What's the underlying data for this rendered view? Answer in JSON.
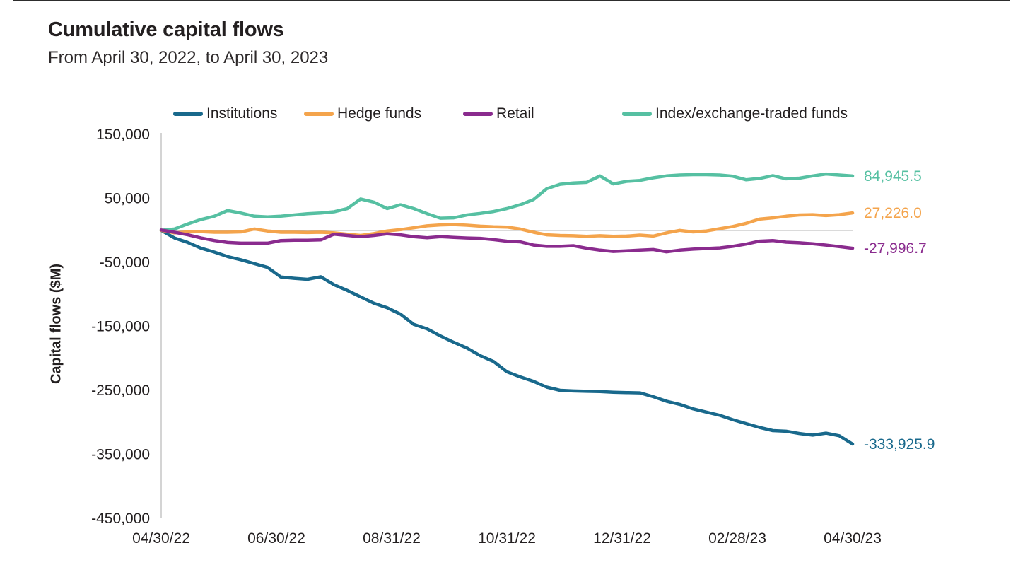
{
  "chart_data": {
    "type": "line",
    "title": "Cumulative capital flows",
    "subtitle": "From April 30, 2022, to April 30, 2023",
    "ylabel": "Capital flows ($M)",
    "xlabel": "",
    "ylim": [
      -450000,
      150000
    ],
    "grid": "zero-line-only",
    "legend_position": "top",
    "x_unit": "weekly points from 04/30/22 to 04/30/23",
    "y_ticks": [
      {
        "value": 150000,
        "label": "150,000"
      },
      {
        "value": 50000,
        "label": "50,000"
      },
      {
        "value": -50000,
        "label": "-50,000"
      },
      {
        "value": -150000,
        "label": "-150,000"
      },
      {
        "value": -250000,
        "label": "-250,000"
      },
      {
        "value": -350000,
        "label": "-350,000"
      },
      {
        "value": -450000,
        "label": "-450,000"
      }
    ],
    "x_tick_labels": [
      "04/30/22",
      "06/30/22",
      "08/31/22",
      "10/31/22",
      "12/31/22",
      "02/28/23",
      "04/30/23"
    ],
    "series": [
      {
        "name": "Institutions",
        "color": "#19698C",
        "end_label": "-333,925.9",
        "end_value": -333925.9,
        "values": [
          0,
          -12000,
          -19000,
          -28000,
          -34000,
          -41000,
          -46000,
          -52000,
          -58000,
          -73000,
          -75000,
          -76500,
          -72500,
          -85000,
          -94000,
          -104000,
          -114000,
          -121000,
          -131000,
          -147000,
          -154000,
          -165000,
          -175000,
          -184000,
          -196000,
          -205000,
          -221000,
          -229000,
          -236000,
          -245000,
          -250000,
          -251000,
          -251500,
          -252000,
          -253000,
          -253500,
          -254000,
          -260000,
          -267000,
          -272000,
          -279000,
          -284000,
          -289000,
          -296000,
          -302000,
          -308000,
          -313000,
          -314000,
          -317500,
          -320000,
          -317000,
          -321000,
          -333925.9
        ]
      },
      {
        "name": "Hedge funds",
        "color": "#F4A44C",
        "end_label": "27,226.0",
        "end_value": 27226.0,
        "values": [
          0,
          -4000,
          -2500,
          -2000,
          -3000,
          -3000,
          -2500,
          2000,
          -1000,
          -3000,
          -3000,
          -3500,
          -3000,
          -4000,
          -6000,
          -8000,
          -5000,
          -1000,
          1000,
          4000,
          7000,
          8500,
          9000,
          8000,
          6500,
          5500,
          5000,
          2000,
          -3000,
          -7000,
          -8000,
          -8500,
          -9500,
          -8500,
          -9500,
          -9000,
          -7500,
          -9000,
          -4000,
          0,
          -2500,
          -1000,
          2500,
          6000,
          11000,
          17500,
          19500,
          22000,
          24000,
          24500,
          23000,
          24500,
          27226.0
        ]
      },
      {
        "name": "Retail",
        "color": "#8A2B8E",
        "end_label": "-27,996.7",
        "end_value": -27996.7,
        "values": [
          500,
          -3000,
          -7000,
          -12000,
          -16000,
          -19000,
          -20000,
          -20000,
          -20000,
          -16000,
          -15500,
          -15500,
          -15000,
          -6000,
          -8000,
          -10000,
          -8000,
          -5500,
          -7000,
          -10000,
          -11500,
          -10000,
          -11000,
          -12000,
          -12500,
          -14500,
          -17000,
          -18000,
          -23000,
          -25000,
          -25000,
          -24000,
          -28000,
          -31000,
          -33000,
          -32000,
          -31000,
          -30000,
          -33500,
          -31000,
          -29500,
          -28500,
          -27500,
          -25000,
          -21500,
          -17000,
          -16000,
          -18500,
          -19500,
          -21000,
          -23000,
          -25500,
          -27996.7
        ]
      },
      {
        "name": "Index/exchange-traded funds",
        "color": "#56C0A2",
        "end_label": "84,945.5",
        "end_value": 84945.5,
        "values": [
          0,
          2000,
          10000,
          17000,
          22000,
          31000,
          27000,
          22000,
          21000,
          22000,
          24000,
          26000,
          27000,
          29000,
          34000,
          49000,
          44000,
          34000,
          40000,
          34000,
          26000,
          19000,
          19500,
          24000,
          26500,
          29500,
          34000,
          40000,
          48000,
          65000,
          72000,
          74000,
          75000,
          85000,
          72500,
          76500,
          78000,
          82000,
          85000,
          86500,
          87000,
          87000,
          86500,
          84500,
          79000,
          81000,
          85500,
          80500,
          81500,
          85000,
          88000,
          86500,
          84945.5
        ]
      }
    ],
    "colors": {
      "text": "#231f20",
      "axis_line": "#c6c6c6",
      "zero_line": "#b4b4b4"
    }
  }
}
